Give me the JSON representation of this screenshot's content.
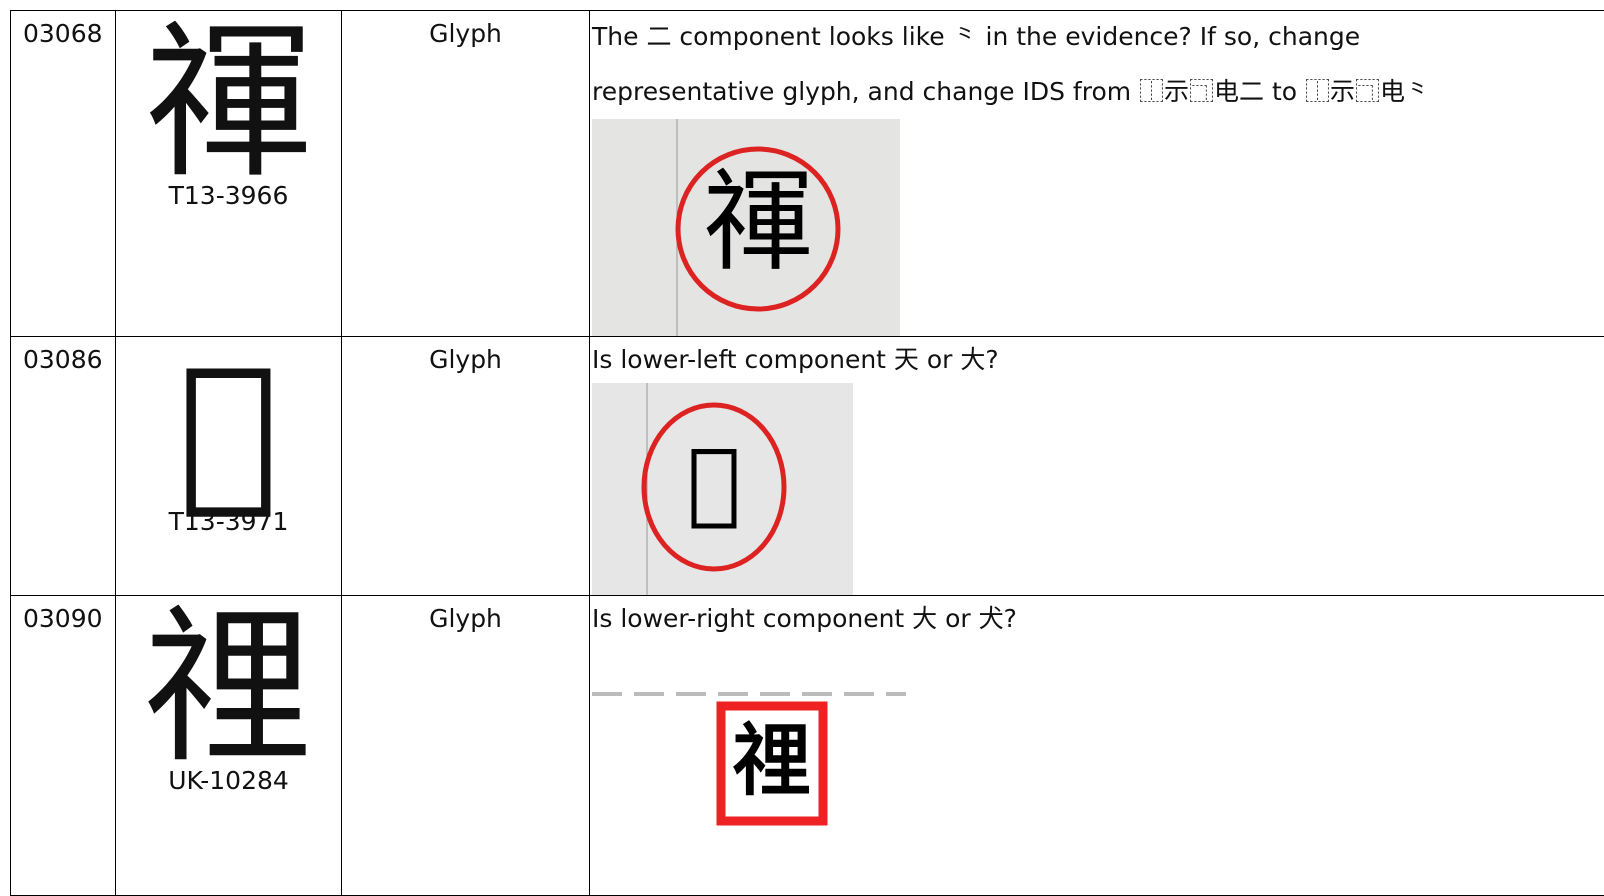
{
  "table": {
    "rows": [
      {
        "id": "03068",
        "glyph": "禈",
        "source": "T13-3966",
        "type": "Glyph",
        "comment": "The 二 component looks like ⺀ in the evidence? If so, change representative glyph, and change IDS from ⿰示⿹电二 to ⿰示⿹电⺀"
      },
      {
        "id": "03086",
        "glyph": "𬐩",
        "source": "T13-3971",
        "type": "Glyph",
        "comment": "Is lower-left component 天 or 大?"
      },
      {
        "id": "03090",
        "glyph": "𥚃",
        "source": "UK-10284",
        "type": "Glyph",
        "comment": "Is lower-right component 大 or 犬?"
      }
    ]
  }
}
